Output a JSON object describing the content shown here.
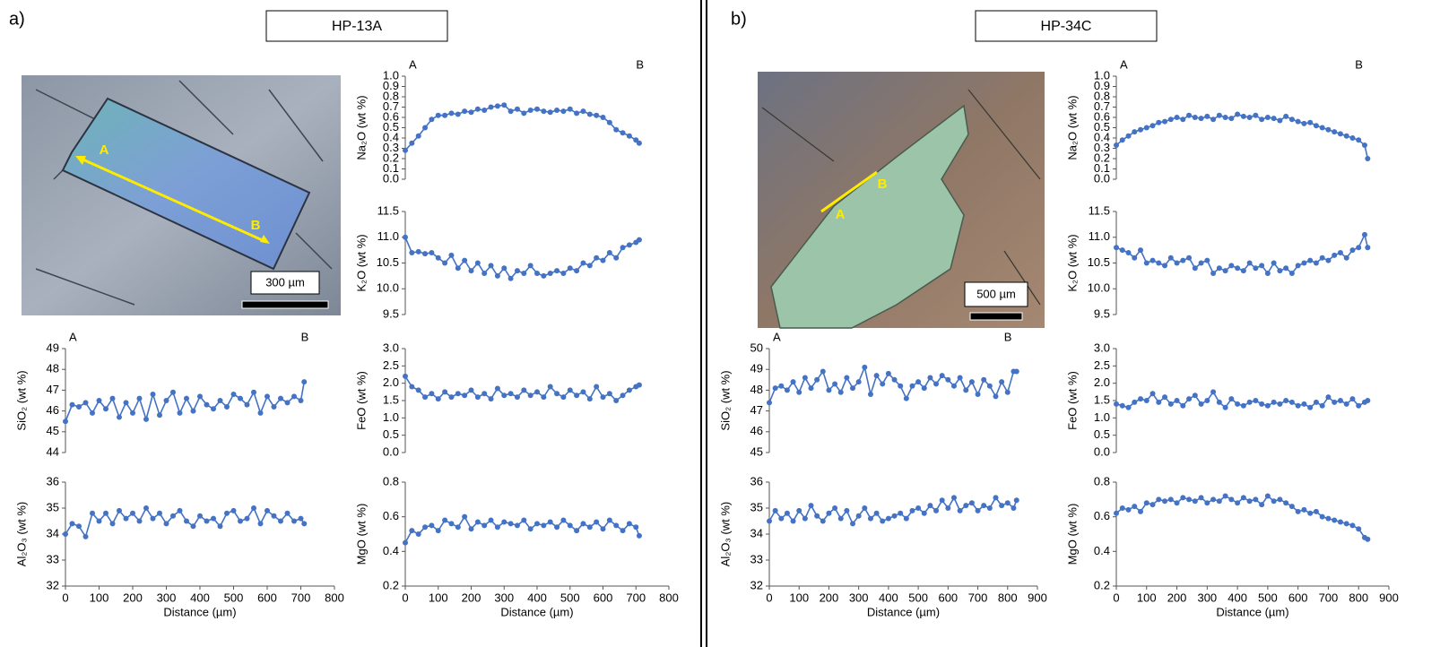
{
  "panels": [
    {
      "label": "a)",
      "sample": "HP-13A",
      "scale_bar": "300 µm",
      "image_labels": [
        "A",
        "B"
      ]
    },
    {
      "label": "b)",
      "sample": "HP-34C",
      "scale_bar": "500 µm",
      "image_labels": [
        "A",
        "B"
      ]
    }
  ],
  "chart_data": [
    {
      "type": "line",
      "ylabel": "Na₂O (wt %)",
      "annotations": [
        "A",
        "B"
      ],
      "color": "#4472c4",
      "xlim": [
        0,
        800
      ],
      "ylim": [
        0,
        1
      ],
      "yticks": [
        {
          "value": 0,
          "label": "0.0"
        },
        0.1,
        0.2,
        0.3,
        0.4,
        0.5,
        0.6,
        0.7,
        0.8,
        0.9,
        {
          "value": 1,
          "label": "1.0"
        }
      ],
      "x": [
        0,
        20,
        40,
        60,
        80,
        100,
        120,
        140,
        160,
        180,
        200,
        220,
        240,
        260,
        280,
        300,
        320,
        340,
        360,
        380,
        400,
        420,
        440,
        460,
        480,
        500,
        520,
        540,
        560,
        580,
        600,
        620,
        640,
        660,
        680,
        700,
        710
      ],
      "values": [
        0.28,
        0.35,
        0.42,
        0.5,
        0.58,
        0.62,
        0.62,
        0.64,
        0.63,
        0.66,
        0.65,
        0.68,
        0.67,
        0.7,
        0.71,
        0.72,
        0.66,
        0.68,
        0.64,
        0.67,
        0.68,
        0.66,
        0.65,
        0.67,
        0.66,
        0.68,
        0.64,
        0.66,
        0.63,
        0.62,
        0.6,
        0.55,
        0.48,
        0.45,
        0.42,
        0.38,
        0.35
      ]
    },
    {
      "type": "line",
      "ylabel": "K₂O (wt %)",
      "color": "#4472c4",
      "xlim": [
        0,
        800
      ],
      "ylim": [
        9.5,
        11.5
      ],
      "yticks": [
        9.5,
        {
          "value": 10,
          "label": "10.0"
        },
        10.5,
        {
          "value": 11,
          "label": "11.0"
        },
        11.5
      ],
      "x": [
        0,
        20,
        40,
        60,
        80,
        100,
        120,
        140,
        160,
        180,
        200,
        220,
        240,
        260,
        280,
        300,
        320,
        340,
        360,
        380,
        400,
        420,
        440,
        460,
        480,
        500,
        520,
        540,
        560,
        580,
        600,
        620,
        640,
        660,
        680,
        700,
        710
      ],
      "values": [
        11.0,
        10.7,
        10.72,
        10.68,
        10.7,
        10.6,
        10.5,
        10.65,
        10.4,
        10.55,
        10.35,
        10.5,
        10.3,
        10.45,
        10.25,
        10.4,
        10.2,
        10.35,
        10.3,
        10.45,
        10.3,
        10.25,
        10.3,
        10.35,
        10.3,
        10.4,
        10.35,
        10.5,
        10.45,
        10.6,
        10.55,
        10.7,
        10.6,
        10.8,
        10.85,
        10.9,
        10.95
      ]
    },
    {
      "type": "line",
      "ylabel": "SiO₂ (wt %)",
      "annotations": [
        "A",
        "B"
      ],
      "color": "#4472c4",
      "xlim": [
        0,
        800
      ],
      "ylim": [
        44,
        49
      ],
      "yticks": [
        44,
        45,
        46,
        47,
        48,
        49
      ],
      "x": [
        0,
        20,
        40,
        60,
        80,
        100,
        120,
        140,
        160,
        180,
        200,
        220,
        240,
        260,
        280,
        300,
        320,
        340,
        360,
        380,
        400,
        420,
        440,
        460,
        480,
        500,
        520,
        540,
        560,
        580,
        600,
        620,
        640,
        660,
        680,
        700,
        710
      ],
      "values": [
        45.5,
        46.3,
        46.2,
        46.4,
        45.9,
        46.5,
        46.1,
        46.6,
        45.7,
        46.4,
        45.9,
        46.6,
        45.6,
        46.8,
        45.8,
        46.5,
        46.9,
        45.9,
        46.6,
        46.0,
        46.7,
        46.3,
        46.1,
        46.5,
        46.2,
        46.8,
        46.6,
        46.3,
        46.9,
        45.9,
        46.7,
        46.2,
        46.6,
        46.4,
        46.7,
        46.5,
        47.4
      ]
    },
    {
      "type": "line",
      "ylabel": "FeO (wt %)",
      "color": "#4472c4",
      "xlim": [
        0,
        800
      ],
      "ylim": [
        0,
        3
      ],
      "yticks": [
        {
          "value": 0,
          "label": "0.0"
        },
        0.5,
        {
          "value": 1,
          "label": "1.0"
        },
        1.5,
        {
          "value": 2,
          "label": "2.0"
        },
        2.5,
        {
          "value": 3,
          "label": "3.0"
        }
      ],
      "x": [
        0,
        20,
        40,
        60,
        80,
        100,
        120,
        140,
        160,
        180,
        200,
        220,
        240,
        260,
        280,
        300,
        320,
        340,
        360,
        380,
        400,
        420,
        440,
        460,
        480,
        500,
        520,
        540,
        560,
        580,
        600,
        620,
        640,
        660,
        680,
        700,
        710
      ],
      "values": [
        2.2,
        1.9,
        1.8,
        1.6,
        1.7,
        1.55,
        1.75,
        1.6,
        1.7,
        1.65,
        1.8,
        1.6,
        1.7,
        1.55,
        1.85,
        1.65,
        1.7,
        1.6,
        1.8,
        1.65,
        1.75,
        1.6,
        1.9,
        1.7,
        1.6,
        1.8,
        1.65,
        1.75,
        1.55,
        1.9,
        1.6,
        1.7,
        1.5,
        1.65,
        1.8,
        1.9,
        1.95
      ]
    },
    {
      "type": "line",
      "ylabel": "Al₂O₃ (wt %)",
      "xlabel": "Distance (µm)",
      "color": "#4472c4",
      "xlim": [
        0,
        800
      ],
      "ylim": [
        32,
        36
      ],
      "xticks": [
        0,
        100,
        200,
        300,
        400,
        500,
        600,
        700,
        800
      ],
      "yticks": [
        32,
        33,
        34,
        35,
        36
      ],
      "x": [
        0,
        20,
        40,
        60,
        80,
        100,
        120,
        140,
        160,
        180,
        200,
        220,
        240,
        260,
        280,
        300,
        320,
        340,
        360,
        380,
        400,
        420,
        440,
        460,
        480,
        500,
        520,
        540,
        560,
        580,
        600,
        620,
        640,
        660,
        680,
        700,
        710
      ],
      "values": [
        34.0,
        34.4,
        34.3,
        33.9,
        34.8,
        34.5,
        34.8,
        34.4,
        34.9,
        34.6,
        34.8,
        34.5,
        35.0,
        34.6,
        34.8,
        34.4,
        34.7,
        34.9,
        34.5,
        34.3,
        34.7,
        34.5,
        34.6,
        34.3,
        34.8,
        34.9,
        34.5,
        34.6,
        35.0,
        34.4,
        34.9,
        34.7,
        34.5,
        34.8,
        34.5,
        34.6,
        34.4
      ]
    },
    {
      "type": "line",
      "ylabel": "MgO (wt %)",
      "xlabel": "Distance (µm)",
      "color": "#4472c4",
      "xlim": [
        0,
        800
      ],
      "ylim": [
        0.2,
        0.8
      ],
      "xticks": [
        0,
        100,
        200,
        300,
        400,
        500,
        600,
        700,
        800
      ],
      "yticks": [
        0.2,
        0.4,
        0.6,
        0.8
      ],
      "x": [
        0,
        20,
        40,
        60,
        80,
        100,
        120,
        140,
        160,
        180,
        200,
        220,
        240,
        260,
        280,
        300,
        320,
        340,
        360,
        380,
        400,
        420,
        440,
        460,
        480,
        500,
        520,
        540,
        560,
        580,
        600,
        620,
        640,
        660,
        680,
        700,
        710
      ],
      "values": [
        0.45,
        0.52,
        0.5,
        0.54,
        0.55,
        0.52,
        0.58,
        0.56,
        0.54,
        0.6,
        0.53,
        0.57,
        0.55,
        0.58,
        0.54,
        0.57,
        0.56,
        0.55,
        0.58,
        0.53,
        0.56,
        0.55,
        0.57,
        0.54,
        0.58,
        0.55,
        0.52,
        0.56,
        0.54,
        0.57,
        0.53,
        0.58,
        0.55,
        0.52,
        0.56,
        0.54,
        0.49
      ]
    },
    {
      "type": "line",
      "ylabel": "Na₂O (wt %)",
      "annotations": [
        "A",
        "B"
      ],
      "color": "#4472c4",
      "xlim": [
        0,
        900
      ],
      "ylim": [
        0,
        1
      ],
      "yticks": [
        {
          "value": 0,
          "label": "0.0"
        },
        0.1,
        0.2,
        0.3,
        0.4,
        0.5,
        0.6,
        0.7,
        0.8,
        0.9,
        {
          "value": 1,
          "label": "1.0"
        }
      ],
      "x": [
        0,
        20,
        40,
        60,
        80,
        100,
        120,
        140,
        160,
        180,
        200,
        220,
        240,
        260,
        280,
        300,
        320,
        340,
        360,
        380,
        400,
        420,
        440,
        460,
        480,
        500,
        520,
        540,
        560,
        580,
        600,
        620,
        640,
        660,
        680,
        700,
        720,
        740,
        760,
        780,
        800,
        820,
        830
      ],
      "values": [
        0.33,
        0.38,
        0.42,
        0.46,
        0.48,
        0.5,
        0.52,
        0.55,
        0.56,
        0.58,
        0.6,
        0.58,
        0.62,
        0.6,
        0.59,
        0.61,
        0.58,
        0.62,
        0.6,
        0.59,
        0.63,
        0.61,
        0.6,
        0.62,
        0.58,
        0.6,
        0.59,
        0.57,
        0.61,
        0.58,
        0.56,
        0.54,
        0.55,
        0.52,
        0.5,
        0.48,
        0.46,
        0.44,
        0.42,
        0.4,
        0.38,
        0.33,
        0.2
      ]
    },
    {
      "type": "line",
      "ylabel": "K₂O (wt %)",
      "color": "#4472c4",
      "xlim": [
        0,
        900
      ],
      "ylim": [
        9.5,
        11.5
      ],
      "yticks": [
        9.5,
        {
          "value": 10,
          "label": "10.0"
        },
        10.5,
        {
          "value": 11,
          "label": "11.0"
        },
        11.5
      ],
      "x": [
        0,
        20,
        40,
        60,
        80,
        100,
        120,
        140,
        160,
        180,
        200,
        220,
        240,
        260,
        280,
        300,
        320,
        340,
        360,
        380,
        400,
        420,
        440,
        460,
        480,
        500,
        520,
        540,
        560,
        580,
        600,
        620,
        640,
        660,
        680,
        700,
        720,
        740,
        760,
        780,
        800,
        820,
        830
      ],
      "values": [
        10.8,
        10.75,
        10.7,
        10.6,
        10.75,
        10.5,
        10.55,
        10.5,
        10.45,
        10.6,
        10.5,
        10.55,
        10.6,
        10.4,
        10.5,
        10.55,
        10.3,
        10.4,
        10.35,
        10.45,
        10.4,
        10.35,
        10.5,
        10.4,
        10.45,
        10.3,
        10.5,
        10.35,
        10.4,
        10.3,
        10.45,
        10.5,
        10.55,
        10.5,
        10.6,
        10.55,
        10.65,
        10.7,
        10.6,
        10.75,
        10.8,
        11.05,
        10.8
      ]
    },
    {
      "type": "line",
      "ylabel": "SiO₂ (wt %)",
      "annotations": [
        "A",
        "B"
      ],
      "color": "#4472c4",
      "xlim": [
        0,
        900
      ],
      "ylim": [
        45,
        50
      ],
      "yticks": [
        45,
        46,
        47,
        48,
        49,
        50
      ],
      "x": [
        0,
        20,
        40,
        60,
        80,
        100,
        120,
        140,
        160,
        180,
        200,
        220,
        240,
        260,
        280,
        300,
        320,
        340,
        360,
        380,
        400,
        420,
        440,
        460,
        480,
        500,
        520,
        540,
        560,
        580,
        600,
        620,
        640,
        660,
        680,
        700,
        720,
        740,
        760,
        780,
        800,
        820,
        830
      ],
      "values": [
        47.4,
        48.1,
        48.2,
        48.0,
        48.4,
        47.9,
        48.6,
        48.1,
        48.5,
        48.9,
        48.0,
        48.3,
        47.9,
        48.6,
        48.1,
        48.4,
        49.1,
        47.8,
        48.7,
        48.3,
        48.8,
        48.5,
        48.2,
        47.6,
        48.2,
        48.4,
        48.1,
        48.6,
        48.3,
        48.7,
        48.5,
        48.2,
        48.6,
        48.0,
        48.4,
        47.8,
        48.5,
        48.2,
        47.7,
        48.4,
        47.9,
        48.9,
        48.9
      ]
    },
    {
      "type": "line",
      "ylabel": "FeO (wt %)",
      "color": "#4472c4",
      "xlim": [
        0,
        900
      ],
      "ylim": [
        0,
        3
      ],
      "yticks": [
        {
          "value": 0,
          "label": "0.0"
        },
        0.5,
        {
          "value": 1,
          "label": "1.0"
        },
        1.5,
        {
          "value": 2,
          "label": "2.0"
        },
        2.5,
        {
          "value": 3,
          "label": "3.0"
        }
      ],
      "x": [
        0,
        20,
        40,
        60,
        80,
        100,
        120,
        140,
        160,
        180,
        200,
        220,
        240,
        260,
        280,
        300,
        320,
        340,
        360,
        380,
        400,
        420,
        440,
        460,
        480,
        500,
        520,
        540,
        560,
        580,
        600,
        620,
        640,
        660,
        680,
        700,
        720,
        740,
        760,
        780,
        800,
        820,
        830
      ],
      "values": [
        1.4,
        1.35,
        1.3,
        1.45,
        1.55,
        1.5,
        1.7,
        1.45,
        1.6,
        1.4,
        1.5,
        1.35,
        1.55,
        1.65,
        1.4,
        1.5,
        1.75,
        1.45,
        1.3,
        1.55,
        1.4,
        1.35,
        1.45,
        1.5,
        1.4,
        1.35,
        1.45,
        1.4,
        1.5,
        1.45,
        1.35,
        1.4,
        1.3,
        1.45,
        1.35,
        1.6,
        1.45,
        1.5,
        1.4,
        1.55,
        1.35,
        1.45,
        1.5
      ]
    },
    {
      "type": "line",
      "ylabel": "Al₂O₃ (wt %)",
      "xlabel": "Distance (µm)",
      "color": "#4472c4",
      "xlim": [
        0,
        900
      ],
      "ylim": [
        32,
        36
      ],
      "xticks": [
        0,
        100,
        200,
        300,
        400,
        500,
        600,
        700,
        800,
        900
      ],
      "yticks": [
        32,
        33,
        34,
        35,
        36
      ],
      "x": [
        0,
        20,
        40,
        60,
        80,
        100,
        120,
        140,
        160,
        180,
        200,
        220,
        240,
        260,
        280,
        300,
        320,
        340,
        360,
        380,
        400,
        420,
        440,
        460,
        480,
        500,
        520,
        540,
        560,
        580,
        600,
        620,
        640,
        660,
        680,
        700,
        720,
        740,
        760,
        780,
        800,
        820,
        830
      ],
      "values": [
        34.5,
        34.9,
        34.6,
        34.8,
        34.5,
        34.9,
        34.6,
        35.1,
        34.7,
        34.5,
        34.8,
        35.0,
        34.6,
        34.9,
        34.4,
        34.7,
        35.0,
        34.6,
        34.8,
        34.5,
        34.6,
        34.7,
        34.8,
        34.6,
        34.9,
        35.0,
        34.8,
        35.1,
        34.9,
        35.3,
        35.0,
        35.4,
        34.9,
        35.1,
        35.2,
        34.9,
        35.1,
        35.0,
        35.4,
        35.1,
        35.2,
        35.0,
        35.3
      ]
    },
    {
      "type": "line",
      "ylabel": "MgO (wt %)",
      "xlabel": "Distance (µm)",
      "color": "#4472c4",
      "xlim": [
        0,
        900
      ],
      "ylim": [
        0.2,
        0.8
      ],
      "xticks": [
        0,
        100,
        200,
        300,
        400,
        500,
        600,
        700,
        800,
        900
      ],
      "yticks": [
        0.2,
        0.4,
        0.6,
        0.8
      ],
      "x": [
        0,
        20,
        40,
        60,
        80,
        100,
        120,
        140,
        160,
        180,
        200,
        220,
        240,
        260,
        280,
        300,
        320,
        340,
        360,
        380,
        400,
        420,
        440,
        460,
        480,
        500,
        520,
        540,
        560,
        580,
        600,
        620,
        640,
        660,
        680,
        700,
        720,
        740,
        760,
        780,
        800,
        820,
        830
      ],
      "values": [
        0.62,
        0.65,
        0.64,
        0.66,
        0.63,
        0.68,
        0.67,
        0.7,
        0.69,
        0.7,
        0.68,
        0.71,
        0.7,
        0.69,
        0.71,
        0.68,
        0.7,
        0.69,
        0.72,
        0.7,
        0.68,
        0.71,
        0.69,
        0.7,
        0.67,
        0.72,
        0.69,
        0.7,
        0.68,
        0.66,
        0.63,
        0.64,
        0.62,
        0.63,
        0.6,
        0.59,
        0.58,
        0.57,
        0.56,
        0.55,
        0.53,
        0.48,
        0.47
      ]
    }
  ]
}
